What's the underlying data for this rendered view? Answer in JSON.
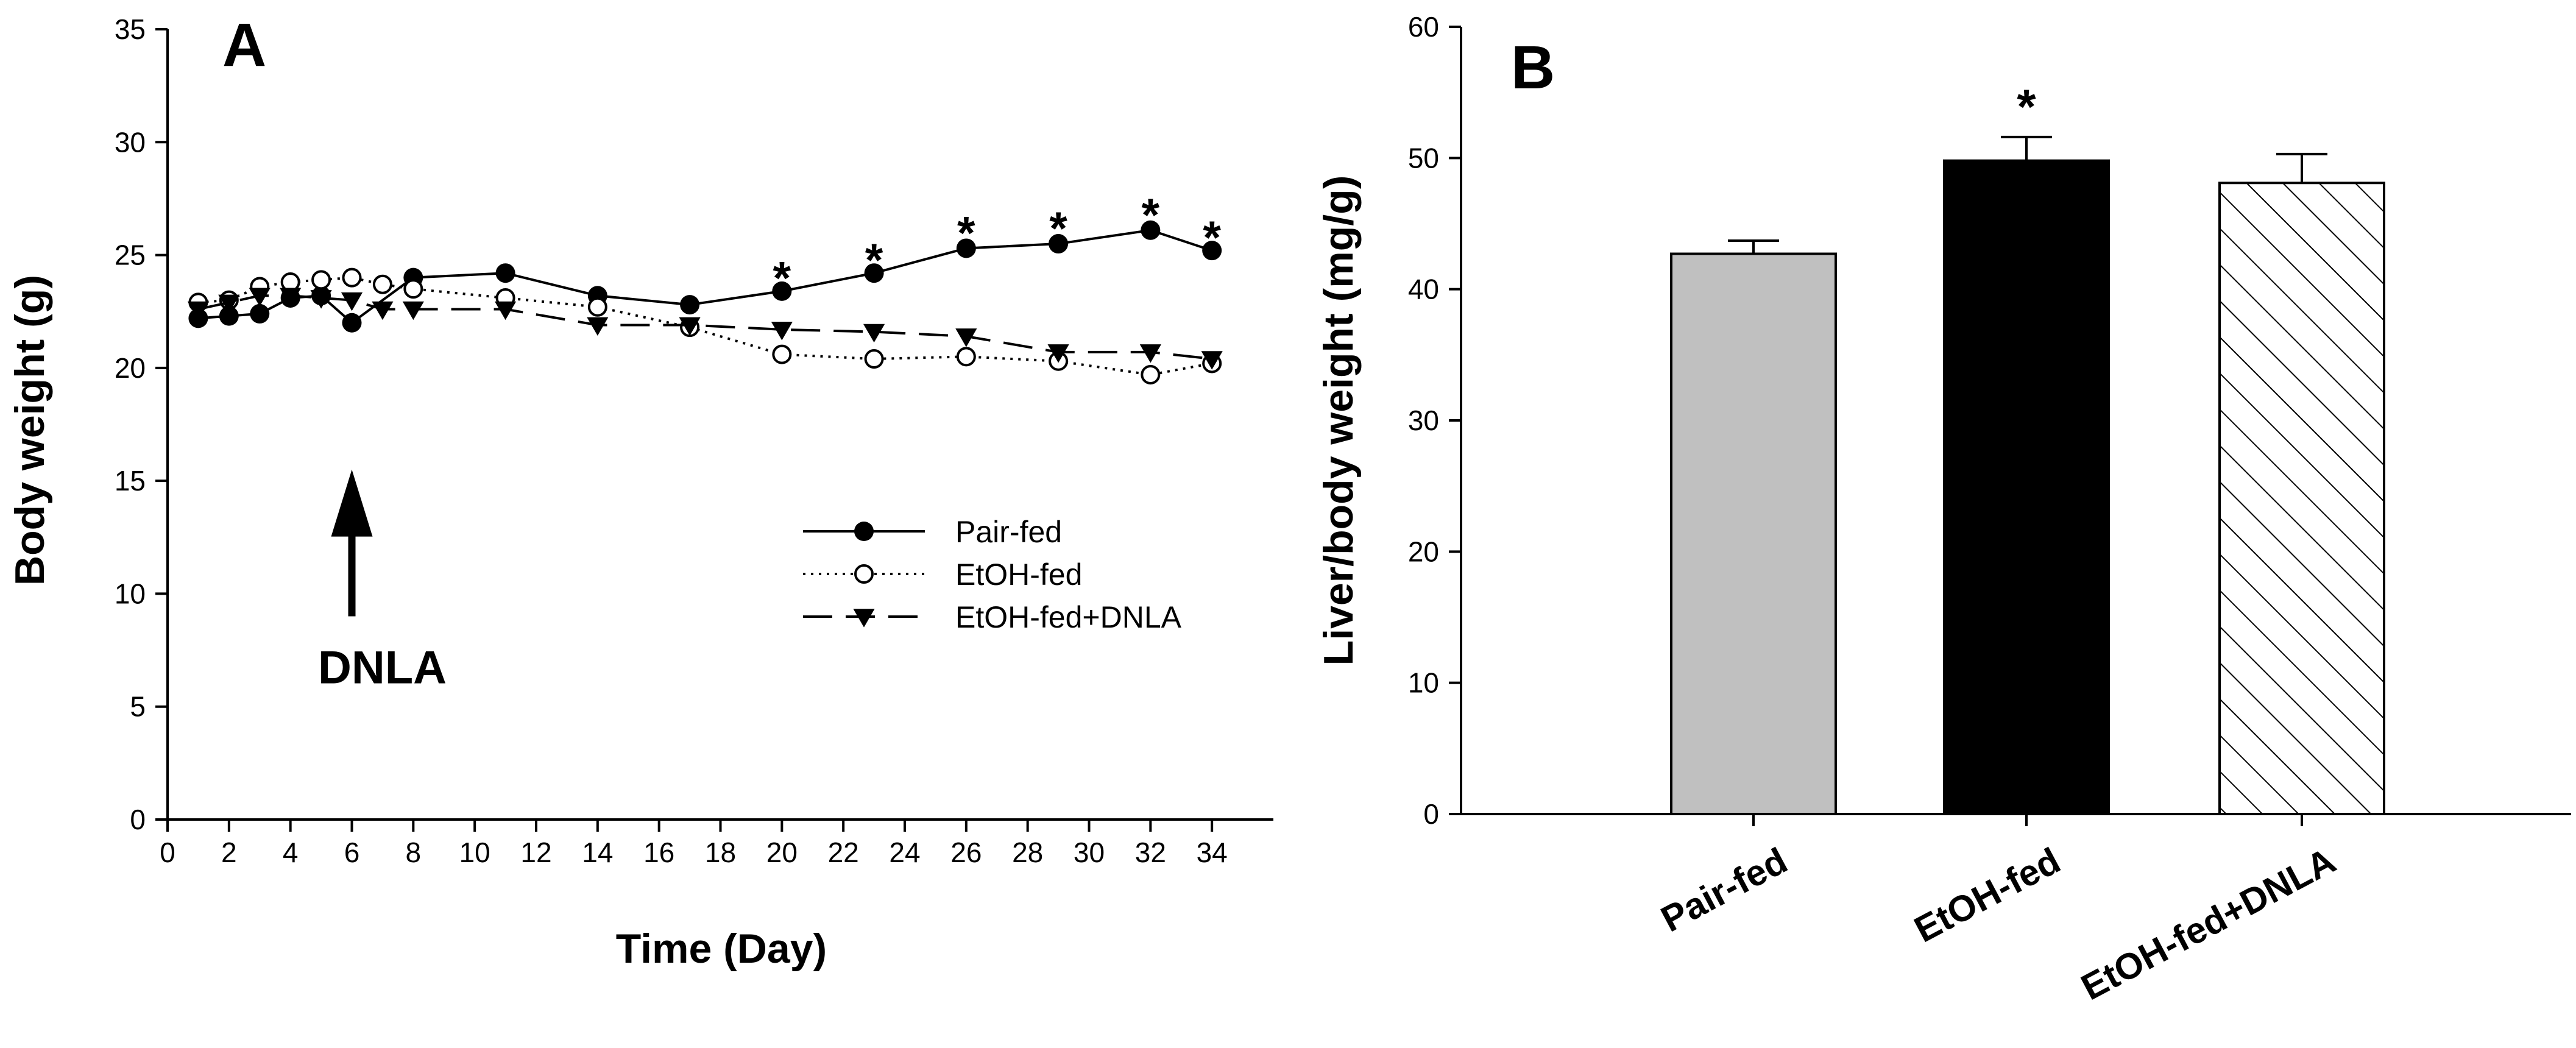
{
  "chart_data": [
    {
      "type": "line",
      "panel_label": "A",
      "xlabel": "Time (Day)",
      "ylabel": "Body weight (g)",
      "xlim": [
        0,
        36
      ],
      "ylim": [
        0,
        35
      ],
      "xticks": [
        0,
        2,
        4,
        6,
        8,
        10,
        12,
        14,
        16,
        18,
        20,
        22,
        24,
        26,
        28,
        30,
        32,
        34
      ],
      "yticks": [
        0,
        5,
        10,
        15,
        20,
        25,
        30,
        35
      ],
      "series": [
        {
          "name": "Pair-fed",
          "marker": "filled-circle",
          "line": "solid",
          "x": [
            1,
            2,
            3,
            4,
            5,
            6,
            8,
            11,
            14,
            17,
            20,
            23,
            26,
            29,
            32,
            34
          ],
          "y": [
            22.2,
            22.3,
            22.4,
            23.1,
            23.2,
            22.0,
            24.0,
            24.2,
            23.2,
            22.8,
            23.4,
            24.2,
            25.3,
            25.5,
            26.1,
            25.2
          ]
        },
        {
          "name": "EtOH-fed",
          "marker": "open-circle",
          "line": "dotted",
          "x": [
            1,
            2,
            3,
            4,
            5,
            6,
            7,
            8,
            11,
            14,
            17,
            20,
            23,
            26,
            29,
            32,
            34
          ],
          "y": [
            22.9,
            23.0,
            23.6,
            23.8,
            23.9,
            24.0,
            23.7,
            23.5,
            23.1,
            22.7,
            21.8,
            20.6,
            20.4,
            20.5,
            20.3,
            19.7,
            20.2
          ]
        },
        {
          "name": "EtOH-fed+DNLA",
          "marker": "filled-triangle-down",
          "line": "dashed",
          "x": [
            1,
            2,
            3,
            4,
            5,
            6,
            7,
            8,
            11,
            14,
            17,
            20,
            23,
            26,
            29,
            32,
            34
          ],
          "y": [
            22.6,
            22.9,
            23.2,
            23.2,
            23.1,
            23.0,
            22.6,
            22.6,
            22.6,
            21.9,
            21.9,
            21.7,
            21.6,
            21.4,
            20.7,
            20.7,
            20.4
          ]
        }
      ],
      "significance": {
        "symbol": "*",
        "x": [
          20,
          23,
          26,
          29,
          32,
          34
        ],
        "y": [
          24.3,
          25.1,
          26.3,
          26.5,
          27.1,
          26.1
        ]
      },
      "annotation": {
        "text": "DNLA",
        "arrow_x": 6,
        "arrow_y_from": 9,
        "arrow_y_to": 15.5
      },
      "legend_position": "center-right"
    },
    {
      "type": "bar",
      "panel_label": "B",
      "ylabel": "Liver/body weight (mg/g)",
      "xlabel": "",
      "ylim": [
        0,
        60
      ],
      "yticks": [
        0,
        10,
        20,
        30,
        40,
        50,
        60
      ],
      "categories": [
        "Pair-fed",
        "EtOH-fed",
        "EtOH-fed+DNLA"
      ],
      "values": [
        42.7,
        49.8,
        48.1
      ],
      "errors": [
        1.0,
        1.8,
        2.2
      ],
      "fills": [
        "gray",
        "black",
        "hatched"
      ],
      "colors": [
        "#c0c0c0",
        "#000000",
        "#ffffff"
      ],
      "significance": {
        "symbol": "*",
        "category": "EtOH-fed",
        "y": 54.5
      }
    }
  ]
}
